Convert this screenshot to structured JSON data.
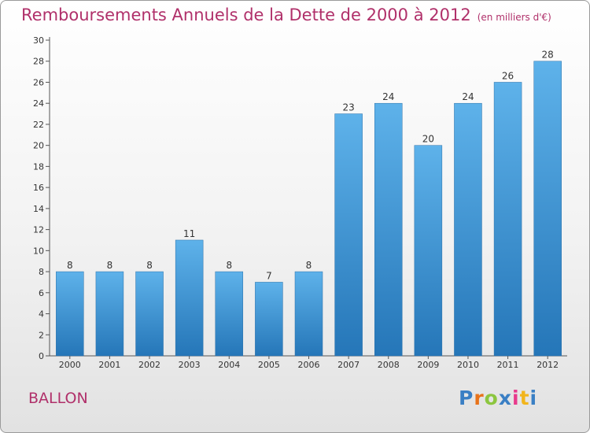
{
  "chart_data": {
    "type": "bar",
    "title": "Remboursements Annuels de la Dette de 2000 à 2012",
    "subtitle": "(en milliers d'€)",
    "categories": [
      "2000",
      "2001",
      "2002",
      "2003",
      "2004",
      "2005",
      "2006",
      "2007",
      "2008",
      "2009",
      "2010",
      "2011",
      "2012"
    ],
    "values": [
      8,
      8,
      8,
      11,
      8,
      7,
      8,
      23,
      24,
      20,
      24,
      26,
      28
    ],
    "ylim": [
      0,
      30
    ],
    "yticks": [
      0,
      2,
      4,
      6,
      8,
      10,
      12,
      14,
      16,
      18,
      20,
      22,
      24,
      26,
      28,
      30
    ],
    "xlabel": "",
    "ylabel": "",
    "grid": false,
    "bar_color": "#3a8fd4"
  },
  "place_name": "BALLON",
  "logo": {
    "letters": [
      "P",
      "r",
      "o",
      "x",
      "i",
      "t",
      "i"
    ],
    "colors": [
      "#3a7fc4",
      "#e8731a",
      "#8cc63f",
      "#3a7fc4",
      "#e83a8c",
      "#f2b51c",
      "#3a7fc4"
    ]
  }
}
